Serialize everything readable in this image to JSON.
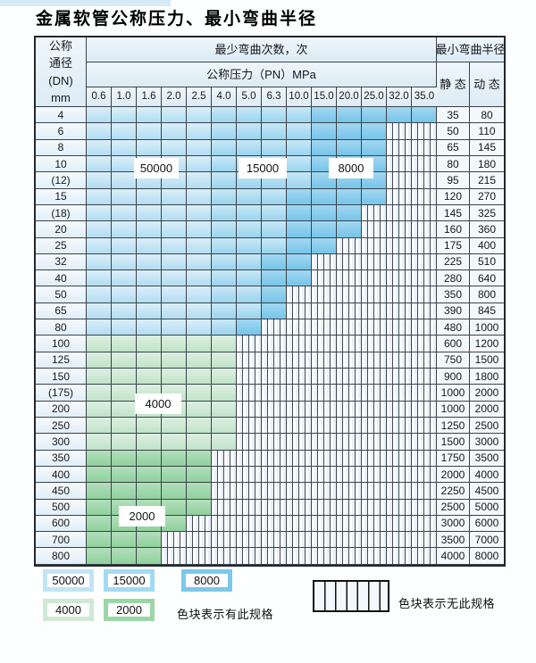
{
  "title": "金属软管公称压力、最小弯曲半径",
  "table": {
    "header": {
      "dn_label": "公称\n通径\n(DN)\nmm",
      "cycles_label": "最少弯曲次数，次",
      "pressure_label": "公称压力（PN）MPa",
      "radius_label": "最小弯曲半径",
      "static_label": "静 态",
      "dynamic_label": "动 态",
      "pressures": [
        "0.6",
        "1.0",
        "1.6",
        "2.0",
        "2.5",
        "4.0",
        "5.0",
        "6.3",
        "10.0",
        "15.0",
        "20.0",
        "25.0",
        "32.0",
        "35.0"
      ]
    },
    "shade_meaning": {
      "b1": "50000次",
      "b2": "15000次",
      "b3": "8000次",
      "g1": "4000次",
      "g2": "2000次",
      "x": "无此规格"
    },
    "rows": [
      {
        "dn": "4",
        "cells": [
          "b1",
          "b1",
          "b1",
          "b1",
          "b1",
          "b2",
          "b2",
          "b2",
          "b2",
          "b3",
          "b3",
          "b3",
          "b3",
          "b3"
        ],
        "static": "35",
        "dynamic": "80"
      },
      {
        "dn": "6",
        "cells": [
          "b1",
          "b1",
          "b1",
          "b1",
          "b1",
          "b2",
          "b2",
          "b2",
          "b2",
          "b3",
          "b3",
          "b3",
          "x",
          "x"
        ],
        "static": "50",
        "dynamic": "110"
      },
      {
        "dn": "8",
        "cells": [
          "b1",
          "b1",
          "b1",
          "b1",
          "b1",
          "b2",
          "b2",
          "b2",
          "b2",
          "b3",
          "b3",
          "b3",
          "x",
          "x"
        ],
        "static": "65",
        "dynamic": "145"
      },
      {
        "dn": "10",
        "cells": [
          "b1",
          "b1",
          "b1",
          "b1",
          "b1",
          "b2",
          "b2",
          "b2",
          "b2",
          "b3",
          "b3",
          "b3",
          "x",
          "x"
        ],
        "static": "80",
        "dynamic": "180"
      },
      {
        "dn": "(12)",
        "cells": [
          "b1",
          "b1",
          "b1",
          "b1",
          "b1",
          "b2",
          "b2",
          "b2",
          "b2",
          "b3",
          "b3",
          "b3",
          "x",
          "x"
        ],
        "static": "95",
        "dynamic": "215"
      },
      {
        "dn": "15",
        "cells": [
          "b1",
          "b1",
          "b1",
          "b1",
          "b1",
          "b2",
          "b2",
          "b2",
          "b3",
          "b3",
          "b3",
          "b3",
          "x",
          "x"
        ],
        "static": "120",
        "dynamic": "270"
      },
      {
        "dn": "(18)",
        "cells": [
          "b1",
          "b1",
          "b1",
          "b1",
          "b1",
          "b2",
          "b2",
          "b2",
          "b3",
          "b3",
          "b3",
          "x",
          "x",
          "x"
        ],
        "static": "145",
        "dynamic": "325"
      },
      {
        "dn": "20",
        "cells": [
          "b1",
          "b1",
          "b1",
          "b1",
          "b1",
          "b2",
          "b2",
          "b2",
          "b3",
          "b3",
          "b3",
          "x",
          "x",
          "x"
        ],
        "static": "160",
        "dynamic": "360"
      },
      {
        "dn": "25",
        "cells": [
          "b1",
          "b1",
          "b1",
          "b1",
          "b1",
          "b2",
          "b2",
          "b2",
          "b3",
          "b3",
          "x",
          "x",
          "x",
          "x"
        ],
        "static": "175",
        "dynamic": "400"
      },
      {
        "dn": "32",
        "cells": [
          "b1",
          "b1",
          "b1",
          "b1",
          "b1",
          "b2",
          "b2",
          "b3",
          "b3",
          "x",
          "x",
          "x",
          "x",
          "x"
        ],
        "static": "225",
        "dynamic": "510"
      },
      {
        "dn": "40",
        "cells": [
          "b1",
          "b1",
          "b1",
          "b1",
          "b1",
          "b2",
          "b2",
          "b3",
          "b3",
          "x",
          "x",
          "x",
          "x",
          "x"
        ],
        "static": "280",
        "dynamic": "640"
      },
      {
        "dn": "50",
        "cells": [
          "b1",
          "b1",
          "b1",
          "b1",
          "b1",
          "b2",
          "b2",
          "b3",
          "x",
          "x",
          "x",
          "x",
          "x",
          "x"
        ],
        "static": "350",
        "dynamic": "800"
      },
      {
        "dn": "65",
        "cells": [
          "b1",
          "b1",
          "b1",
          "b1",
          "b1",
          "b2",
          "b2",
          "b3",
          "x",
          "x",
          "x",
          "x",
          "x",
          "x"
        ],
        "static": "390",
        "dynamic": "845"
      },
      {
        "dn": "80",
        "cells": [
          "b1",
          "b1",
          "b1",
          "b1",
          "b1",
          "b2",
          "b3",
          "x",
          "x",
          "x",
          "x",
          "x",
          "x",
          "x"
        ],
        "static": "480",
        "dynamic": "1000"
      },
      {
        "dn": "100",
        "cells": [
          "g1",
          "g1",
          "g1",
          "g1",
          "g1",
          "g1",
          "x",
          "x",
          "x",
          "x",
          "x",
          "x",
          "x",
          "x"
        ],
        "static": "600",
        "dynamic": "1200"
      },
      {
        "dn": "125",
        "cells": [
          "g1",
          "g1",
          "g1",
          "g1",
          "g1",
          "g1",
          "x",
          "x",
          "x",
          "x",
          "x",
          "x",
          "x",
          "x"
        ],
        "static": "750",
        "dynamic": "1500"
      },
      {
        "dn": "150",
        "cells": [
          "g1",
          "g1",
          "g1",
          "g1",
          "g1",
          "g1",
          "x",
          "x",
          "x",
          "x",
          "x",
          "x",
          "x",
          "x"
        ],
        "static": "900",
        "dynamic": "1800"
      },
      {
        "dn": "(175)",
        "cells": [
          "g1",
          "g1",
          "g1",
          "g1",
          "g1",
          "g1",
          "x",
          "x",
          "x",
          "x",
          "x",
          "x",
          "x",
          "x"
        ],
        "static": "1000",
        "dynamic": "2000"
      },
      {
        "dn": "200",
        "cells": [
          "g1",
          "g1",
          "g1",
          "g1",
          "g1",
          "g1",
          "x",
          "x",
          "x",
          "x",
          "x",
          "x",
          "x",
          "x"
        ],
        "static": "1000",
        "dynamic": "2000"
      },
      {
        "dn": "250",
        "cells": [
          "g1",
          "g1",
          "g1",
          "g1",
          "g1",
          "g1",
          "x",
          "x",
          "x",
          "x",
          "x",
          "x",
          "x",
          "x"
        ],
        "static": "1250",
        "dynamic": "2500"
      },
      {
        "dn": "300",
        "cells": [
          "g1",
          "g1",
          "g1",
          "g1",
          "g1",
          "g1",
          "x",
          "x",
          "x",
          "x",
          "x",
          "x",
          "x",
          "x"
        ],
        "static": "1500",
        "dynamic": "3000"
      },
      {
        "dn": "350",
        "cells": [
          "g2",
          "g2",
          "g2",
          "g2",
          "g2",
          "x",
          "x",
          "x",
          "x",
          "x",
          "x",
          "x",
          "x",
          "x"
        ],
        "static": "1750",
        "dynamic": "3500"
      },
      {
        "dn": "400",
        "cells": [
          "g2",
          "g2",
          "g2",
          "g2",
          "g2",
          "x",
          "x",
          "x",
          "x",
          "x",
          "x",
          "x",
          "x",
          "x"
        ],
        "static": "2000",
        "dynamic": "4000"
      },
      {
        "dn": "450",
        "cells": [
          "g2",
          "g2",
          "g2",
          "g2",
          "g2",
          "x",
          "x",
          "x",
          "x",
          "x",
          "x",
          "x",
          "x",
          "x"
        ],
        "static": "2250",
        "dynamic": "4500"
      },
      {
        "dn": "500",
        "cells": [
          "g2",
          "g2",
          "g2",
          "g2",
          "g2",
          "x",
          "x",
          "x",
          "x",
          "x",
          "x",
          "x",
          "x",
          "x"
        ],
        "static": "2500",
        "dynamic": "5000"
      },
      {
        "dn": "600",
        "cells": [
          "g2",
          "g2",
          "g2",
          "g2",
          "x",
          "x",
          "x",
          "x",
          "x",
          "x",
          "x",
          "x",
          "x",
          "x"
        ],
        "static": "3000",
        "dynamic": "6000"
      },
      {
        "dn": "700",
        "cells": [
          "g2",
          "g2",
          "g2",
          "x",
          "x",
          "x",
          "x",
          "x",
          "x",
          "x",
          "x",
          "x",
          "x",
          "x"
        ],
        "static": "3500",
        "dynamic": "7000"
      },
      {
        "dn": "800",
        "cells": [
          "g2",
          "g2",
          "g2",
          "x",
          "x",
          "x",
          "x",
          "x",
          "x",
          "x",
          "x",
          "x",
          "x",
          "x"
        ],
        "static": "4000",
        "dynamic": "8000"
      }
    ]
  },
  "region_labels": [
    "50000",
    "15000",
    "8000",
    "4000",
    "2000"
  ],
  "legend": {
    "chips": [
      {
        "label": "50000",
        "color_key": "blue_light"
      },
      {
        "label": "15000",
        "color_key": "blue_medium"
      },
      {
        "label": "8000",
        "color_key": "blue_dark"
      },
      {
        "label": "4000",
        "color_key": "green_light"
      },
      {
        "label": "2000",
        "color_key": "green_dark"
      }
    ],
    "has_spec_text": "色块表示有此规格",
    "no_spec_text": "色块表示无此规格"
  },
  "colors": {
    "blue_light": "#c3e4f4",
    "blue_medium": "#a2daf1",
    "blue_dark": "#7cc8ea",
    "green_light": "#cfe9d4",
    "green_dark": "#9cd6a7",
    "hatch_line": "#434a53",
    "table_border": "#23282d",
    "header_bg": "#e3eef7"
  }
}
